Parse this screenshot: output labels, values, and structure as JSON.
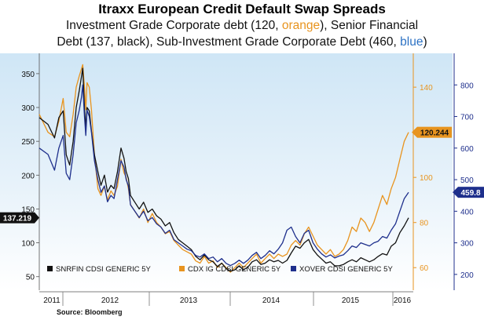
{
  "title": "Itraxx European Credit Default  Swap Spreads",
  "subtitle": {
    "line1_pre": "Investment Grade Corporate debt (120, ",
    "line1_color_word": "orange",
    "line1_post": "), Senior Financial",
    "line2_pre": "Debt (137, black), Sub-Investment Grade Corporate Debt (460, ",
    "line2_color_word": "blue",
    "line2_post": ")"
  },
  "source": "Source: Bloomberg",
  "chart_data": {
    "type": "line",
    "x_labels": [
      "2011",
      "2012",
      "2013",
      "2014",
      "2015",
      "2016"
    ],
    "axes": {
      "left": {
        "ticks": [
          "50",
          "100",
          "150",
          "200",
          "250",
          "300",
          "350"
        ],
        "range": [
          30,
          380
        ],
        "color": "#111111"
      },
      "right_inner": {
        "ticks": [
          "60",
          "80",
          "100",
          "120",
          "140"
        ],
        "range": [
          50,
          155
        ],
        "color": "#e8941f"
      },
      "right_outer": {
        "ticks": [
          "200",
          "300",
          "400",
          "500",
          "600",
          "700",
          "800"
        ],
        "range": [
          150,
          900
        ],
        "color": "#1e2f8c"
      }
    },
    "series": [
      {
        "name": "SNRFIN CDSI GENERIC 5Y",
        "axis": "left",
        "color": "#111111",
        "last_value_label": "137.219",
        "points": [
          [
            0.0,
            285
          ],
          [
            0.2,
            275
          ],
          [
            0.35,
            255
          ],
          [
            0.45,
            285
          ],
          [
            0.55,
            295
          ],
          [
            0.62,
            230
          ],
          [
            0.7,
            215
          ],
          [
            0.78,
            250
          ],
          [
            0.85,
            300
          ],
          [
            0.92,
            325
          ],
          [
            0.97,
            345
          ],
          [
            1.0,
            358
          ],
          [
            1.04,
            300
          ],
          [
            1.07,
            270
          ],
          [
            1.1,
            300
          ],
          [
            1.15,
            295
          ],
          [
            1.2,
            265
          ],
          [
            1.27,
            230
          ],
          [
            1.35,
            205
          ],
          [
            1.42,
            185
          ],
          [
            1.5,
            200
          ],
          [
            1.57,
            175
          ],
          [
            1.65,
            185
          ],
          [
            1.72,
            180
          ],
          [
            1.8,
            205
          ],
          [
            1.88,
            240
          ],
          [
            1.95,
            225
          ],
          [
            2.0,
            205
          ],
          [
            2.05,
            195
          ],
          [
            2.1,
            170
          ],
          [
            2.2,
            160
          ],
          [
            2.3,
            150
          ],
          [
            2.4,
            160
          ],
          [
            2.5,
            145
          ],
          [
            2.6,
            150
          ],
          [
            2.7,
            140
          ],
          [
            2.8,
            135
          ],
          [
            2.9,
            125
          ],
          [
            3.0,
            130
          ],
          [
            3.1,
            115
          ],
          [
            3.2,
            105
          ],
          [
            3.3,
            100
          ],
          [
            3.4,
            95
          ],
          [
            3.5,
            90
          ],
          [
            3.6,
            80
          ],
          [
            3.7,
            75
          ],
          [
            3.8,
            82
          ],
          [
            3.9,
            75
          ],
          [
            4.0,
            72
          ],
          [
            4.1,
            65
          ],
          [
            4.2,
            70
          ],
          [
            4.3,
            62
          ],
          [
            4.4,
            58
          ],
          [
            4.5,
            60
          ],
          [
            4.6,
            66
          ],
          [
            4.7,
            60
          ],
          [
            4.8,
            64
          ],
          [
            4.9,
            72
          ],
          [
            5.0,
            75
          ],
          [
            5.1,
            68
          ],
          [
            5.2,
            70
          ],
          [
            5.3,
            75
          ],
          [
            5.4,
            72
          ],
          [
            5.5,
            74
          ],
          [
            5.6,
            70
          ],
          [
            5.7,
            74
          ],
          [
            5.8,
            85
          ],
          [
            5.9,
            95
          ],
          [
            6.0,
            92
          ],
          [
            6.1,
            100
          ],
          [
            6.2,
            105
          ],
          [
            6.3,
            90
          ],
          [
            6.4,
            82
          ],
          [
            6.5,
            76
          ],
          [
            6.6,
            70
          ],
          [
            6.7,
            72
          ],
          [
            6.8,
            66
          ],
          [
            6.9,
            66
          ],
          [
            7.0,
            68
          ],
          [
            7.1,
            72
          ],
          [
            7.2,
            75
          ],
          [
            7.3,
            72
          ],
          [
            7.4,
            78
          ],
          [
            7.5,
            75
          ],
          [
            7.6,
            72
          ],
          [
            7.7,
            75
          ],
          [
            7.8,
            80
          ],
          [
            7.9,
            84
          ],
          [
            8.0,
            82
          ],
          [
            8.1,
            95
          ],
          [
            8.2,
            100
          ],
          [
            8.3,
            115
          ],
          [
            8.4,
            125
          ],
          [
            8.5,
            137
          ]
        ]
      },
      {
        "name": "CDX IG CDSI GENERIC 5Y",
        "axis": "right_inner",
        "color": "#e8941f",
        "last_value_label": "120.244",
        "points": [
          [
            0.0,
            128
          ],
          [
            0.2,
            120
          ],
          [
            0.35,
            118
          ],
          [
            0.45,
            125
          ],
          [
            0.55,
            135
          ],
          [
            0.62,
            120
          ],
          [
            0.7,
            118
          ],
          [
            0.78,
            128
          ],
          [
            0.85,
            140
          ],
          [
            0.92,
            145
          ],
          [
            0.97,
            148
          ],
          [
            1.0,
            150
          ],
          [
            1.04,
            140
          ],
          [
            1.07,
            130
          ],
          [
            1.1,
            142
          ],
          [
            1.15,
            140
          ],
          [
            1.2,
            130
          ],
          [
            1.27,
            110
          ],
          [
            1.35,
            95
          ],
          [
            1.42,
            92
          ],
          [
            1.5,
            96
          ],
          [
            1.57,
            90
          ],
          [
            1.65,
            94
          ],
          [
            1.72,
            92
          ],
          [
            1.8,
            96
          ],
          [
            1.88,
            108
          ],
          [
            1.95,
            102
          ],
          [
            2.0,
            100
          ],
          [
            2.05,
            95
          ],
          [
            2.1,
            88
          ],
          [
            2.2,
            85
          ],
          [
            2.3,
            82
          ],
          [
            2.4,
            86
          ],
          [
            2.5,
            80
          ],
          [
            2.6,
            84
          ],
          [
            2.7,
            80
          ],
          [
            2.8,
            78
          ],
          [
            2.9,
            75
          ],
          [
            3.0,
            76
          ],
          [
            3.1,
            72
          ],
          [
            3.2,
            70
          ],
          [
            3.3,
            68
          ],
          [
            3.4,
            67
          ],
          [
            3.5,
            66
          ],
          [
            3.6,
            63
          ],
          [
            3.7,
            62
          ],
          [
            3.8,
            65
          ],
          [
            3.9,
            62
          ],
          [
            4.0,
            63
          ],
          [
            4.1,
            60
          ],
          [
            4.2,
            62
          ],
          [
            4.3,
            60
          ],
          [
            4.4,
            58
          ],
          [
            4.5,
            60
          ],
          [
            4.6,
            62
          ],
          [
            4.7,
            60
          ],
          [
            4.8,
            62
          ],
          [
            4.9,
            64
          ],
          [
            5.0,
            66
          ],
          [
            5.1,
            62
          ],
          [
            5.2,
            64
          ],
          [
            5.3,
            66
          ],
          [
            5.4,
            64
          ],
          [
            5.5,
            66
          ],
          [
            5.6,
            65
          ],
          [
            5.7,
            66
          ],
          [
            5.8,
            70
          ],
          [
            5.9,
            72
          ],
          [
            6.0,
            70
          ],
          [
            6.1,
            75
          ],
          [
            6.2,
            78
          ],
          [
            6.3,
            74
          ],
          [
            6.4,
            70
          ],
          [
            6.5,
            68
          ],
          [
            6.6,
            66
          ],
          [
            6.7,
            68
          ],
          [
            6.8,
            65
          ],
          [
            6.9,
            66
          ],
          [
            7.0,
            68
          ],
          [
            7.1,
            72
          ],
          [
            7.2,
            78
          ],
          [
            7.3,
            76
          ],
          [
            7.4,
            82
          ],
          [
            7.5,
            80
          ],
          [
            7.6,
            76
          ],
          [
            7.7,
            80
          ],
          [
            7.8,
            86
          ],
          [
            7.9,
            92
          ],
          [
            8.0,
            88
          ],
          [
            8.1,
            95
          ],
          [
            8.2,
            100
          ],
          [
            8.3,
            108
          ],
          [
            8.4,
            116
          ],
          [
            8.5,
            120
          ]
        ]
      },
      {
        "name": "XOVER CDSI GENERIC 5Y",
        "axis": "right_outer",
        "color": "#1e2f8c",
        "last_value_label": "459.8",
        "points": [
          [
            0.0,
            600
          ],
          [
            0.2,
            580
          ],
          [
            0.35,
            530
          ],
          [
            0.45,
            600
          ],
          [
            0.55,
            640
          ],
          [
            0.62,
            520
          ],
          [
            0.7,
            500
          ],
          [
            0.78,
            580
          ],
          [
            0.85,
            680
          ],
          [
            0.92,
            720
          ],
          [
            0.97,
            760
          ],
          [
            1.0,
            800
          ],
          [
            1.04,
            700
          ],
          [
            1.07,
            640
          ],
          [
            1.1,
            720
          ],
          [
            1.15,
            700
          ],
          [
            1.2,
            650
          ],
          [
            1.27,
            560
          ],
          [
            1.35,
            500
          ],
          [
            1.42,
            460
          ],
          [
            1.5,
            480
          ],
          [
            1.57,
            430
          ],
          [
            1.65,
            450
          ],
          [
            1.72,
            440
          ],
          [
            1.8,
            500
          ],
          [
            1.88,
            560
          ],
          [
            1.95,
            540
          ],
          [
            2.0,
            500
          ],
          [
            2.05,
            480
          ],
          [
            2.1,
            420
          ],
          [
            2.2,
            400
          ],
          [
            2.3,
            380
          ],
          [
            2.4,
            400
          ],
          [
            2.5,
            370
          ],
          [
            2.6,
            380
          ],
          [
            2.7,
            360
          ],
          [
            2.8,
            350
          ],
          [
            2.9,
            330
          ],
          [
            3.0,
            340
          ],
          [
            3.1,
            310
          ],
          [
            3.2,
            300
          ],
          [
            3.3,
            290
          ],
          [
            3.4,
            280
          ],
          [
            3.5,
            275
          ],
          [
            3.6,
            260
          ],
          [
            3.7,
            255
          ],
          [
            3.8,
            265
          ],
          [
            3.9,
            250
          ],
          [
            4.0,
            255
          ],
          [
            4.1,
            240
          ],
          [
            4.2,
            250
          ],
          [
            4.3,
            235
          ],
          [
            4.4,
            228
          ],
          [
            4.5,
            235
          ],
          [
            4.6,
            245
          ],
          [
            4.7,
            235
          ],
          [
            4.8,
            245
          ],
          [
            4.9,
            260
          ],
          [
            5.0,
            270
          ],
          [
            5.1,
            250
          ],
          [
            5.2,
            260
          ],
          [
            5.3,
            275
          ],
          [
            5.4,
            265
          ],
          [
            5.5,
            280
          ],
          [
            5.6,
            300
          ],
          [
            5.7,
            340
          ],
          [
            5.8,
            350
          ],
          [
            5.9,
            320
          ],
          [
            6.0,
            300
          ],
          [
            6.1,
            330
          ],
          [
            6.2,
            340
          ],
          [
            6.3,
            300
          ],
          [
            6.4,
            280
          ],
          [
            6.5,
            265
          ],
          [
            6.6,
            255
          ],
          [
            6.7,
            262
          ],
          [
            6.8,
            252
          ],
          [
            6.9,
            258
          ],
          [
            7.0,
            262
          ],
          [
            7.1,
            275
          ],
          [
            7.2,
            290
          ],
          [
            7.3,
            285
          ],
          [
            7.4,
            300
          ],
          [
            7.5,
            295
          ],
          [
            7.6,
            290
          ],
          [
            7.7,
            300
          ],
          [
            7.8,
            305
          ],
          [
            7.9,
            320
          ],
          [
            8.0,
            315
          ],
          [
            8.1,
            340
          ],
          [
            8.2,
            360
          ],
          [
            8.3,
            400
          ],
          [
            8.4,
            440
          ],
          [
            8.5,
            460
          ]
        ]
      }
    ],
    "legend_placement": "bottom",
    "grid": false
  }
}
